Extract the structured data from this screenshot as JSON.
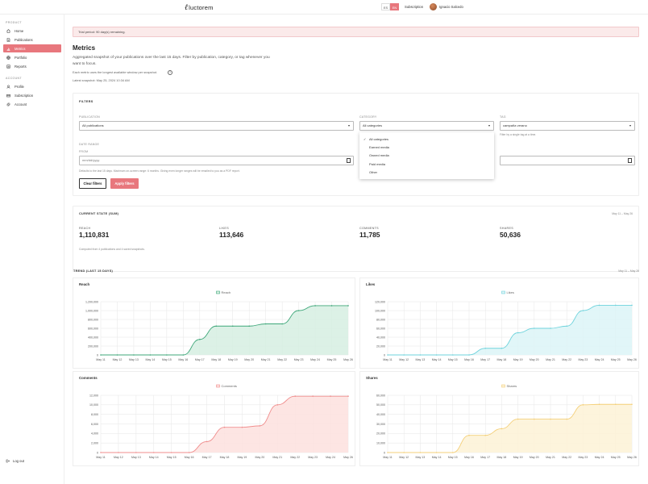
{
  "brand": {
    "logo_text": "luctorem"
  },
  "topbar": {
    "languages": [
      "ES",
      "EN"
    ],
    "active_language": "EN",
    "subscription_link": "Subscription",
    "user_name": "Ignacio Salcedo"
  },
  "sidebar": {
    "product_heading": "PRODUCT",
    "product_items": [
      {
        "label": "Home",
        "icon": "home-icon"
      },
      {
        "label": "Publications",
        "icon": "document-icon"
      },
      {
        "label": "Metrics",
        "icon": "bar-chart-icon",
        "active": true
      },
      {
        "label": "Portfolio",
        "icon": "globe-icon"
      },
      {
        "label": "Reports",
        "icon": "report-icon"
      }
    ],
    "account_heading": "ACCOUNT",
    "account_items": [
      {
        "label": "Profile",
        "icon": "user-icon"
      },
      {
        "label": "Subscription",
        "icon": "card-icon"
      },
      {
        "label": "Account",
        "icon": "gear-icon"
      }
    ],
    "logout_label": "Log out"
  },
  "trial_banner": "Trial period: 90 day(s) remaining.",
  "page": {
    "title": "Metrics",
    "lead": "Aggregated snapshot of your publications over the last 15 days. Filter by publication, category, or tag whenever you want to focus.",
    "note": "Each metric uses the longest available window per snapshot.",
    "info_icon_glyph": "?",
    "latest_snapshot": "Latest snapshot: May 25, 2024 10:34 AM"
  },
  "filters": {
    "heading": "FILTERS",
    "publication_label": "PUBLICATION",
    "publication_value": "All publications",
    "category_label": "CATEGORY",
    "category_value": "All categories",
    "tag_label": "TAG",
    "tag_value": "campaña verano",
    "tag_hint": "Filter by a single tag at a time.",
    "date_range_label": "DATE RANGE",
    "from_label": "FROM",
    "from_placeholder": "mm/dd/yyyy",
    "date_hint": "Defaults to the last 15 days. Maximum on-screen range: 6 months. Giving even longer ranges will be emailed to you as a PDF report.",
    "clear_button": "Clear filters",
    "apply_button": "Apply filters",
    "category_options": [
      "All categories",
      "Earned media",
      "Owned media",
      "Paid media",
      "Other"
    ],
    "selected_category": "All categories",
    "check_glyph": "✓",
    "caret_glyph": "▾"
  },
  "current_state": {
    "heading": "CURRENT STATE (SUM)",
    "range": "May 11 – May 26",
    "stats": [
      {
        "label": "REACH",
        "value": "1,110,831"
      },
      {
        "label": "LIKES",
        "value": "113,646"
      },
      {
        "label": "COMMENTS",
        "value": "11,785"
      },
      {
        "label": "SHARES",
        "value": "50,636"
      }
    ],
    "footnote": "Computed from 4 publications and 4 saved snapshots."
  },
  "trend": {
    "heading": "TREND (LAST 15 DAYS)",
    "range": "May 11 – May 26"
  },
  "chart_data": [
    {
      "type": "area",
      "title": "Reach",
      "series": [
        {
          "name": "Reach",
          "values": [
            0,
            0,
            0,
            0,
            0,
            0,
            350000,
            650000,
            650000,
            650000,
            700000,
            700000,
            1000000,
            1110000,
            1110000,
            1110000
          ]
        }
      ],
      "x": [
        "May 11",
        "May 12",
        "May 13",
        "May 14",
        "May 15",
        "May 16",
        "May 17",
        "May 18",
        "May 19",
        "May 20",
        "May 21",
        "May 22",
        "May 23",
        "May 24",
        "May 25",
        "May 26"
      ],
      "yticks": [
        "0",
        "200,000",
        "400,000",
        "600,000",
        "800,000",
        "1,000,000",
        "1,200,000"
      ],
      "ylim": [
        0,
        1200000
      ],
      "color": "#3fa77a",
      "fill": "#d6efe2",
      "legend": "top-center"
    },
    {
      "type": "area",
      "title": "Likes",
      "series": [
        {
          "name": "Likes",
          "values": [
            0,
            0,
            0,
            0,
            0,
            0,
            15000,
            15000,
            50000,
            60000,
            60000,
            65000,
            100000,
            112000,
            112000,
            112000
          ]
        }
      ],
      "x": [
        "May 11",
        "May 12",
        "May 13",
        "May 14",
        "May 15",
        "May 16",
        "May 17",
        "May 18",
        "May 19",
        "May 20",
        "May 21",
        "May 22",
        "May 23",
        "May 24",
        "May 25",
        "May 26"
      ],
      "yticks": [
        "0",
        "20,000",
        "40,000",
        "60,000",
        "80,000",
        "100,000",
        "120,000"
      ],
      "ylim": [
        0,
        120000
      ],
      "color": "#6fd3dc",
      "fill": "#dcf5f7",
      "legend": "top-center"
    },
    {
      "type": "area",
      "title": "Comments",
      "series": [
        {
          "name": "Comments",
          "values": [
            0,
            0,
            0,
            0,
            0,
            0,
            2300,
            5300,
            5300,
            5600,
            10000,
            11800,
            11800,
            11800,
            11800
          ]
        }
      ],
      "x": [
        "May 11",
        "May 12",
        "May 13",
        "May 14",
        "May 15",
        "May 16",
        "May 17",
        "May 18",
        "May 19",
        "May 20",
        "May 21",
        "May 22",
        "May 23",
        "May 24",
        "May 26"
      ],
      "yticks": [
        "0",
        "2,000",
        "4,000",
        "6,000",
        "8,000",
        "10,000",
        "12,000"
      ],
      "ylim": [
        0,
        12000
      ],
      "color": "#f08d8d",
      "fill": "#fde0de",
      "legend": "top-center"
    },
    {
      "type": "area",
      "title": "Shares",
      "series": [
        {
          "name": "Shares",
          "values": [
            0,
            0,
            0,
            0,
            0,
            18000,
            18000,
            25000,
            35000,
            35000,
            35000,
            35000,
            50000,
            50500,
            50500,
            50500
          ]
        }
      ],
      "x": [
        "May 11",
        "May 12",
        "May 13",
        "May 14",
        "May 15",
        "May 16",
        "May 17",
        "May 18",
        "May 19",
        "May 20",
        "May 21",
        "May 22",
        "May 23",
        "May 24",
        "May 25",
        "May 26"
      ],
      "yticks": [
        "0",
        "10,000",
        "20,000",
        "30,000",
        "40,000",
        "50,000",
        "60,000"
      ],
      "ylim": [
        0,
        60000
      ],
      "color": "#f4cf78",
      "fill": "#fdf2d6",
      "legend": "top-center"
    }
  ]
}
